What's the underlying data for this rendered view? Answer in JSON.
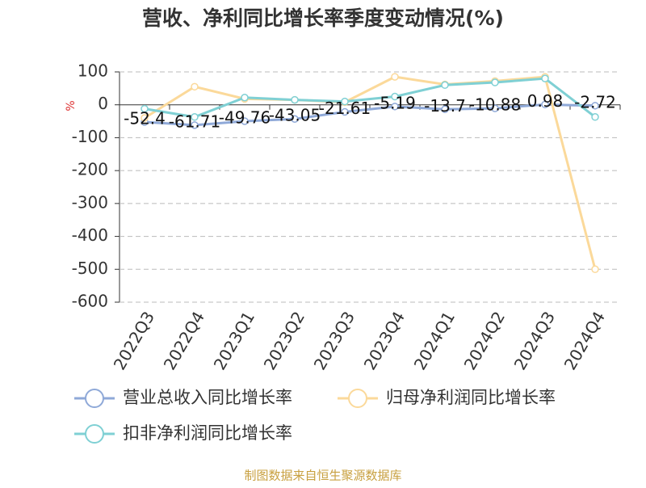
{
  "chart_data": {
    "type": "line",
    "title": "营收、净利同比增长率季度变动情况(%)",
    "ylabel": "%",
    "source": "制图数据来自恒生聚源数据库",
    "categories": [
      "2022Q3",
      "2022Q4",
      "2023Q1",
      "2023Q2",
      "2023Q3",
      "2023Q4",
      "2024Q1",
      "2024Q2",
      "2024Q3",
      "2024Q4"
    ],
    "series": [
      {
        "name": "营业总收入同比增长率",
        "color": "#8fa9d8",
        "show_labels": true,
        "values": [
          -52.4,
          -61.71,
          -49.76,
          -43.05,
          -21.61,
          -5.19,
          -13.7,
          -10.88,
          0.98,
          -2.72
        ]
      },
      {
        "name": "归母净利润同比增长率",
        "color": "#fbd99a",
        "show_labels": false,
        "values": [
          -40,
          55,
          18,
          15,
          8,
          85,
          62,
          72,
          85,
          -500
        ]
      },
      {
        "name": "扣非净利润同比增长率",
        "color": "#7fd0d4",
        "show_labels": false,
        "values": [
          -12,
          -37,
          22,
          15,
          10,
          25,
          60,
          68,
          80,
          -37
        ]
      }
    ],
    "ylim": [
      -600,
      100
    ],
    "yticks": [
      -600,
      -500,
      -400,
      -300,
      -200,
      -100,
      0,
      100
    ],
    "grid": true
  }
}
